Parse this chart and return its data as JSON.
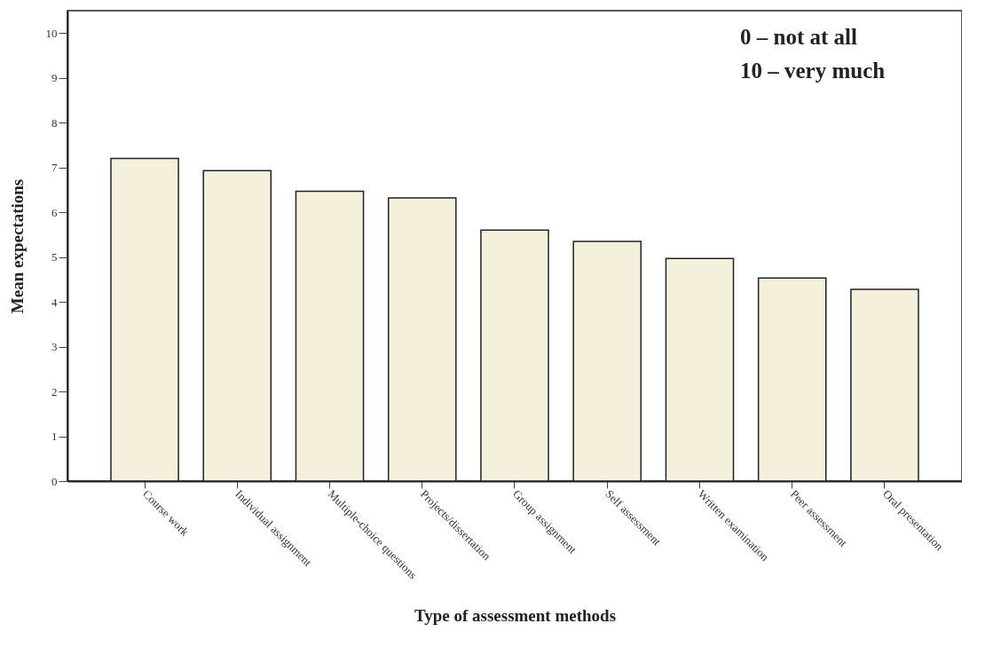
{
  "chart_data": {
    "type": "bar",
    "categories": [
      "Course work",
      "Individual assignment",
      "Multiple-choice questions",
      "Projects/dissertation",
      "Group assignment",
      "Self assessment",
      "Written examination",
      "Peer assessment",
      "Oral presentation"
    ],
    "values": [
      7.2,
      6.93,
      6.47,
      6.32,
      5.6,
      5.35,
      4.97,
      4.53,
      4.28
    ],
    "color": "#f5f0dc",
    "xlabel": "Type of assessment methods",
    "ylabel": "Mean expectations",
    "ylim": [
      0,
      10.5
    ],
    "yticks": [
      0,
      1,
      2,
      3,
      4,
      5,
      6,
      7,
      8,
      9,
      10
    ],
    "annotations": [
      "0 – not at all",
      "10 – very much"
    ],
    "grid": false
  }
}
